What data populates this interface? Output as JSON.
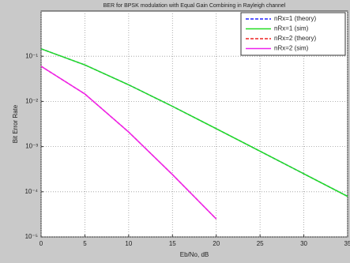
{
  "chart_data": {
    "type": "line",
    "title": "BER for BPSK modulation with Equal Gain Combining in Rayleigh channel",
    "x_label": "Eb/No, dB",
    "y_label": "Bit Error Rate",
    "x": [
      0,
      5,
      10,
      15,
      20,
      25,
      30,
      35
    ],
    "series": [
      {
        "name": "nRx=1 (theory)",
        "color": "#2222ff",
        "dash": true,
        "values": [
          0.146,
          0.0642,
          0.0233,
          0.00778,
          0.00249,
          0.00079,
          0.00025,
          7.9e-05
        ]
      },
      {
        "name": "nRx=1 (sim)",
        "color": "#22dd22",
        "dash": false,
        "values": [
          0.146,
          0.0642,
          0.0233,
          0.00778,
          0.00249,
          0.00079,
          0.00025,
          7.9e-05
        ]
      },
      {
        "name": "nRx=2 (theory)",
        "color": "#ee2222",
        "dash": true,
        "values": [
          0.06,
          0.0146,
          0.0021,
          0.00024,
          2.5e-05,
          null,
          null,
          null
        ]
      },
      {
        "name": "nRx=2 (sim)",
        "color": "#ee22ee",
        "dash": false,
        "values": [
          0.06,
          0.0146,
          0.0021,
          0.00024,
          2.5e-05,
          null,
          null,
          null
        ]
      }
    ],
    "xlim": [
      0,
      35
    ],
    "xticks": [
      0,
      5,
      10,
      15,
      20,
      25,
      30,
      35
    ],
    "ylim": [
      1e-05,
      1
    ],
    "log_y": true,
    "yticks": [
      {
        "value": 1e-05,
        "label": "10⁻⁵"
      },
      {
        "value": 0.0001,
        "label": "10⁻⁴"
      },
      {
        "value": 0.001,
        "label": "10⁻³"
      },
      {
        "value": 0.01,
        "label": "10⁻²"
      },
      {
        "value": 0.1,
        "label": "10⁻¹"
      }
    ],
    "grid": true,
    "legend": "upper right"
  }
}
